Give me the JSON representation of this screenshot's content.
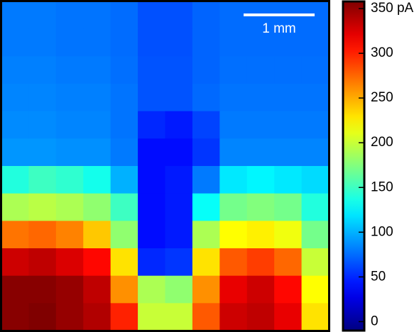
{
  "chart_data": {
    "type": "heatmap",
    "colormap": "jet",
    "scale_label": "1 mm",
    "z": [
      [
        80,
        80,
        78,
        78,
        75,
        65,
        65,
        72,
        75,
        75,
        75,
        75
      ],
      [
        80,
        80,
        78,
        78,
        75,
        65,
        65,
        72,
        75,
        75,
        75,
        75
      ],
      [
        82,
        82,
        80,
        80,
        76,
        66,
        66,
        72,
        76,
        76,
        76,
        76
      ],
      [
        84,
        84,
        82,
        82,
        78,
        66,
        66,
        74,
        78,
        78,
        78,
        78
      ],
      [
        86,
        86,
        84,
        84,
        78,
        50,
        45,
        60,
        80,
        80,
        80,
        80
      ],
      [
        90,
        90,
        88,
        88,
        80,
        40,
        40,
        55,
        84,
        84,
        84,
        84
      ],
      [
        140,
        150,
        145,
        135,
        100,
        40,
        45,
        80,
        120,
        125,
        120,
        115
      ],
      [
        190,
        195,
        190,
        180,
        150,
        40,
        45,
        130,
        170,
        175,
        170,
        140
      ],
      [
        270,
        275,
        265,
        240,
        180,
        40,
        45,
        190,
        220,
        225,
        215,
        170
      ],
      [
        330,
        335,
        325,
        310,
        230,
        50,
        55,
        230,
        280,
        290,
        275,
        200
      ],
      [
        355,
        355,
        350,
        335,
        260,
        190,
        180,
        260,
        320,
        330,
        310,
        220
      ],
      [
        355,
        358,
        350,
        340,
        300,
        200,
        200,
        280,
        330,
        335,
        320,
        230
      ]
    ],
    "zlim": [
      -10,
      358
    ],
    "zticks": [
      0,
      50,
      100,
      150,
      200,
      250,
      300,
      {
        "value": 350,
        "label": "350 pA"
      }
    ]
  }
}
